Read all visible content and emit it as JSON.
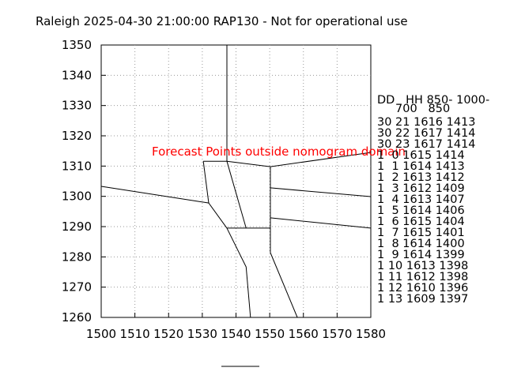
{
  "chart_data": {
    "type": "line",
    "title": "Raleigh 2025-04-30 21:00:00 RAP130 - Not for operational use",
    "annotation": "Forecast Points outside nomogram domain",
    "annotation_color": "#ff0000",
    "line_color": "#000000",
    "grid": true,
    "xlim": [
      1500,
      1580
    ],
    "xticks": [
      1500,
      1510,
      1520,
      1530,
      1540,
      1550,
      1560,
      1570,
      1580
    ],
    "ylim": [
      1260,
      1350
    ],
    "yticks": [
      1260,
      1270,
      1280,
      1290,
      1300,
      1310,
      1320,
      1330,
      1340,
      1350
    ],
    "segments": [
      {
        "x": [
          1537.3,
          1537.3
        ],
        "y": [
          1350,
          1311.6
        ]
      },
      {
        "x": [
          1530.3,
          1537.3
        ],
        "y": [
          1311.6,
          1311.6
        ]
      },
      {
        "x": [
          1537.3,
          1550.2,
          1580
        ],
        "y": [
          1311.6,
          1309.8,
          1314.5
        ]
      },
      {
        "x": [
          1530.3,
          1531.9
        ],
        "y": [
          1311.6,
          1297.8
        ]
      },
      {
        "x": [
          1500,
          1531.9,
          1537.3
        ],
        "y": [
          1303.3,
          1297.8,
          1289.5
        ]
      },
      {
        "x": [
          1537.3,
          1543
        ],
        "y": [
          1311.6,
          1289.5
        ]
      },
      {
        "x": [
          1537.3,
          1550.2
        ],
        "y": [
          1289.5,
          1289.5
        ]
      },
      {
        "x": [
          1550.2,
          1550.2,
          1558.2
        ],
        "y": [
          1309.8,
          1281.4,
          1260
        ]
      },
      {
        "x": [
          1550.2,
          1580
        ],
        "y": [
          1302.8,
          1299.9
        ]
      },
      {
        "x": [
          1550.2,
          1580
        ],
        "y": [
          1292.9,
          1289.5
        ]
      },
      {
        "x": [
          1537.3,
          1543,
          1544.3
        ],
        "y": [
          1289.5,
          1276.7,
          1260
        ]
      }
    ],
    "table": {
      "header": [
        "DD   HH 850- 1000-",
        "     700   850"
      ],
      "rows": [
        "30 21 1616 1413",
        "30 22 1617 1414",
        "30 23 1617 1414",
        "1  0 1615 1414",
        "1  1 1614 1413",
        "1  2 1613 1412",
        "1  3 1612 1409",
        "1  4 1613 1407",
        "1  5 1614 1406",
        "1  6 1615 1404",
        "1  7 1615 1401",
        "1  8 1614 1400",
        "1  9 1614 1399",
        "1 10 1613 1398",
        "1 11 1612 1398",
        "1 12 1610 1396",
        "1 13 1609 1397"
      ]
    }
  }
}
